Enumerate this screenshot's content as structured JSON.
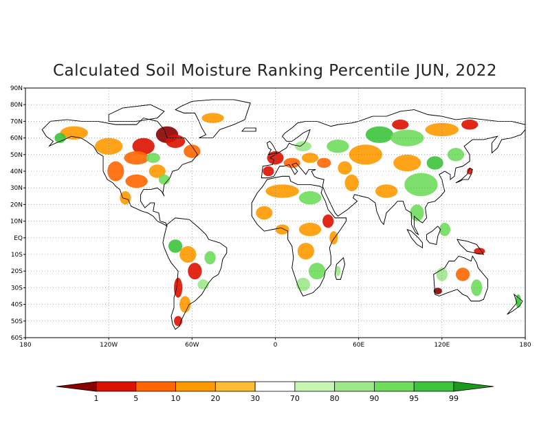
{
  "title": "Calculated Soil Moisture Ranking Percentile JUN, 2022",
  "map": {
    "lat_labels": [
      "90N",
      "80N",
      "70N",
      "60N",
      "50N",
      "40N",
      "30N",
      "20N",
      "10N",
      "EQ",
      "10S",
      "20S",
      "30S",
      "40S",
      "50S",
      "60S"
    ],
    "lon_labels": [
      "180",
      "120W",
      "60W",
      "0",
      "60E",
      "120E",
      "180"
    ],
    "grid": true,
    "lon_range": [
      -180,
      180
    ],
    "lat_range": [
      -60,
      90
    ]
  },
  "colorbar": {
    "labels": [
      "1",
      "5",
      "10",
      "20",
      "30",
      "70",
      "80",
      "90",
      "95",
      "99"
    ],
    "colors": [
      "#8b0000",
      "#dd1100",
      "#ff6600",
      "#ff9900",
      "#ffbb33",
      "#ffffff",
      "#c8f5b4",
      "#9de88a",
      "#6fdc5c",
      "#3cc43c",
      "#1a9a1a"
    ]
  },
  "land_color": "#ffffff",
  "coast_color": "#000000"
}
